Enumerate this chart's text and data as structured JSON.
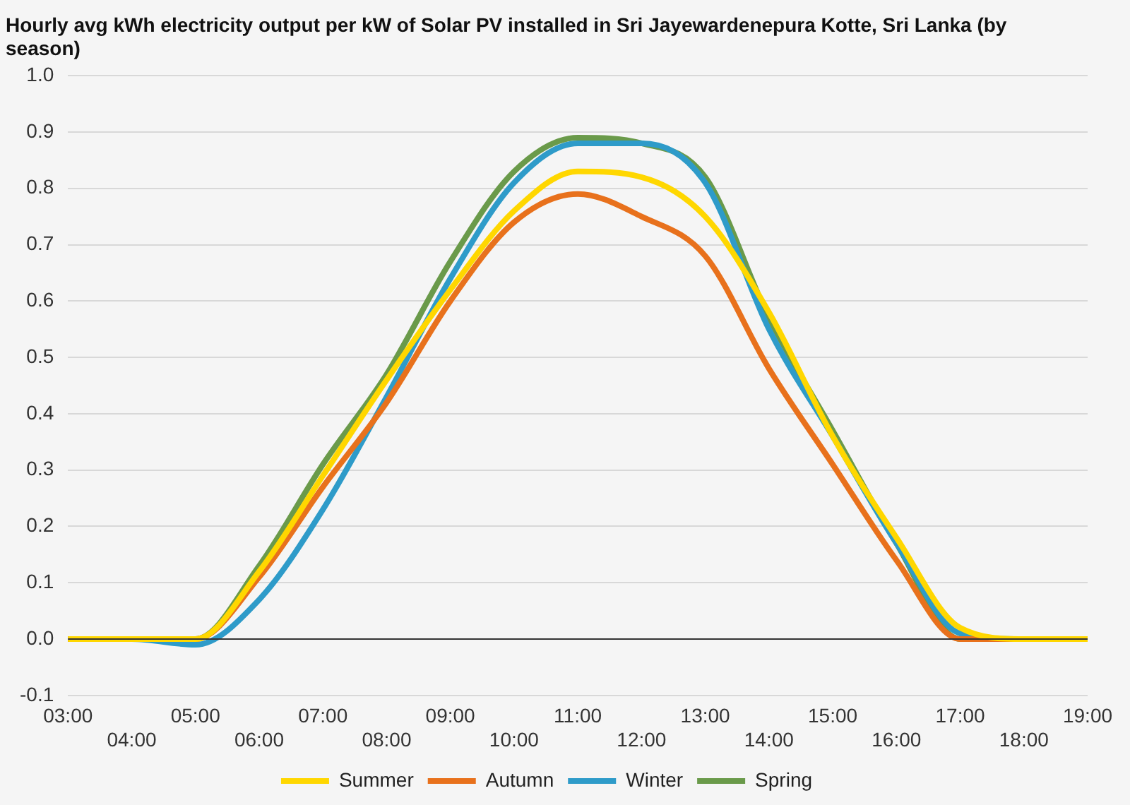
{
  "chart_data": {
    "type": "line",
    "title": "Hourly avg kWh electricity output per kW of Solar PV installed in Sri Jayewardenepura Kotte, Sri Lanka (by season)",
    "categories": [
      "03:00",
      "04:00",
      "05:00",
      "06:00",
      "07:00",
      "08:00",
      "09:00",
      "10:00",
      "11:00",
      "12:00",
      "13:00",
      "14:00",
      "15:00",
      "16:00",
      "17:00",
      "18:00",
      "19:00"
    ],
    "series": [
      {
        "name": "Summer",
        "color": "#ffd700",
        "values": [
          0,
          0,
          0,
          0.12,
          0.29,
          0.46,
          0.62,
          0.76,
          0.83,
          0.82,
          0.75,
          0.58,
          0.36,
          0.18,
          0.02,
          0,
          0
        ]
      },
      {
        "name": "Autumn",
        "color": "#e8711c",
        "values": [
          0,
          0,
          0,
          0.11,
          0.27,
          0.42,
          0.6,
          0.74,
          0.79,
          0.75,
          0.68,
          0.48,
          0.31,
          0.14,
          0,
          0,
          0
        ]
      },
      {
        "name": "Winter",
        "color": "#2e9bc9",
        "values": [
          0,
          0,
          -0.01,
          0.07,
          0.23,
          0.43,
          0.64,
          0.81,
          0.88,
          0.88,
          0.81,
          0.55,
          0.36,
          0.17,
          0.01,
          0,
          0
        ]
      },
      {
        "name": "Spring",
        "color": "#6a9a4a",
        "values": [
          0,
          0,
          0,
          0.13,
          0.31,
          0.47,
          0.67,
          0.83,
          0.89,
          0.88,
          0.82,
          0.57,
          0.37,
          0.17,
          0,
          0,
          0
        ]
      }
    ],
    "ylim": [
      -0.1,
      1.0
    ],
    "yticks": [
      {
        "value": -0.1,
        "label": "-0.1"
      },
      {
        "value": 0,
        "label": "0.0"
      },
      {
        "value": 0.1,
        "label": "0.1"
      },
      {
        "value": 0.2,
        "label": "0.2"
      },
      {
        "value": 0.3,
        "label": "0.3"
      },
      {
        "value": 0.4,
        "label": "0.4"
      },
      {
        "value": 0.5,
        "label": "0.5"
      },
      {
        "value": 0.6,
        "label": "0.6"
      },
      {
        "value": 0.7,
        "label": "0.7"
      },
      {
        "value": 0.8,
        "label": "0.8"
      },
      {
        "value": 0.9,
        "label": "0.9"
      },
      {
        "value": 1,
        "label": "1.0"
      }
    ],
    "grid": "y",
    "legend": "bottom",
    "marker": "none",
    "line_style": "solid"
  }
}
